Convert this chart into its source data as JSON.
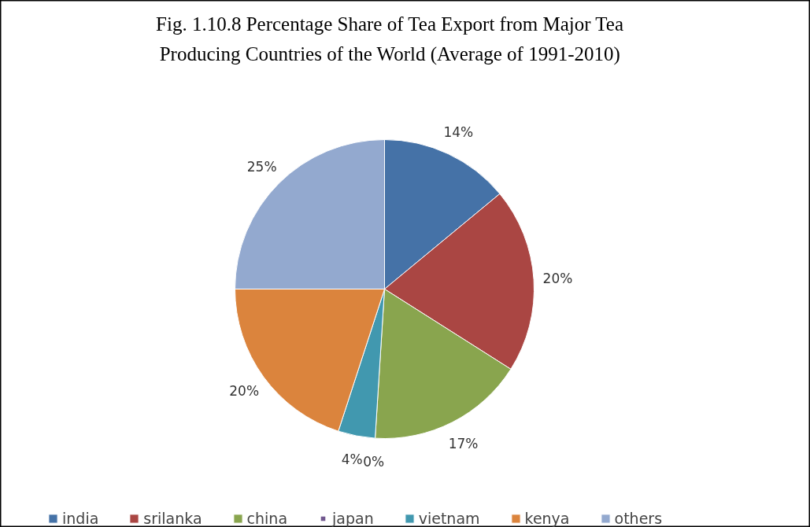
{
  "chart_data": {
    "type": "pie",
    "title": "Fig. 1.10.8 Percentage Share of Tea Export from Major Tea Producing Countries of the World (Average of 1991-2010)",
    "categories": [
      "india",
      "srilanka",
      "china",
      "japan",
      "vietnam",
      "kenya",
      "others"
    ],
    "values": [
      14,
      20,
      17,
      0,
      4,
      20,
      25
    ],
    "colors": [
      "#4572a7",
      "#aa4643",
      "#89a54e",
      "#71588f",
      "#4198af",
      "#db843d",
      "#93a9cf"
    ],
    "value_labels": [
      "14%",
      "20%",
      "17%",
      "0%",
      "4%",
      "20%",
      "25%"
    ],
    "legend": "bottom"
  }
}
